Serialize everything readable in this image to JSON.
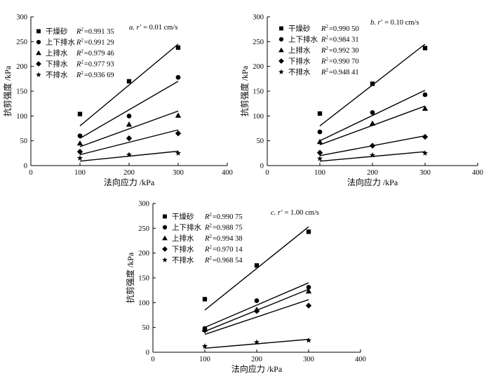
{
  "chart_data": [
    {
      "id": "a",
      "type": "scatter",
      "title_prefix": "a. r′ =",
      "title_value": "0.01 cm/s",
      "xlabel": "法向应力 /kPa",
      "ylabel": "抗剪强度 /kPa",
      "xlim": [
        0,
        400
      ],
      "ylim": [
        0,
        300
      ],
      "xticks": [
        "0",
        "100",
        "200",
        "300",
        "400"
      ],
      "yticks": [
        "0",
        "50",
        "100",
        "150",
        "200",
        "250",
        "300"
      ],
      "x": [
        100,
        200,
        300
      ],
      "series": [
        {
          "name": "干燥砂",
          "marker": "square",
          "r2": "=0.991 35",
          "values": [
            104,
            170,
            238
          ],
          "fit": [
            80,
            245
          ]
        },
        {
          "name": "上下排水",
          "marker": "circle",
          "r2": "=0.991 29",
          "values": [
            60,
            100,
            178
          ],
          "fit": [
            55,
            170
          ]
        },
        {
          "name": "上排水",
          "marker": "triangle",
          "r2": "=0.979 46",
          "values": [
            45,
            83,
            101
          ],
          "fit": [
            38,
            110
          ]
        },
        {
          "name": "下排水",
          "marker": "diamond",
          "r2": "=0.977 93",
          "values": [
            28,
            55,
            65
          ],
          "fit": [
            22,
            72
          ]
        },
        {
          "name": "不排水",
          "marker": "star",
          "r2": "=0.936 69",
          "values": [
            15,
            22,
            25
          ],
          "fit": [
            9,
            29
          ]
        }
      ]
    },
    {
      "id": "b",
      "type": "scatter",
      "title_prefix": "b. r′ =",
      "title_value": "0.10 cm/s",
      "xlabel": "法向应力 /kPa",
      "ylabel": "抗剪强度 /kPa",
      "xlim": [
        0,
        400
      ],
      "ylim": [
        0,
        300
      ],
      "xticks": [
        "0",
        "100",
        "200",
        "300",
        "400"
      ],
      "yticks": [
        "0",
        "50",
        "100",
        "150",
        "200",
        "250",
        "300"
      ],
      "x": [
        100,
        200,
        300
      ],
      "series": [
        {
          "name": "干燥砂",
          "marker": "square",
          "r2": "=0.990 50",
          "values": [
            105,
            165,
            237
          ],
          "fit": [
            80,
            245
          ]
        },
        {
          "name": "上下排水",
          "marker": "circle",
          "r2": "=0.984 31",
          "values": [
            68,
            107,
            143
          ],
          "fit": [
            50,
            152
          ]
        },
        {
          "name": "上排水",
          "marker": "triangle",
          "r2": "=0.992 30",
          "values": [
            48,
            85,
            115
          ],
          "fit": [
            42,
            120
          ]
        },
        {
          "name": "下排水",
          "marker": "diamond",
          "r2": "=0.990 70",
          "values": [
            26,
            40,
            58
          ],
          "fit": [
            20,
            60
          ]
        },
        {
          "name": "不排水",
          "marker": "star",
          "r2": "=0.948 41",
          "values": [
            14,
            21,
            25
          ],
          "fit": [
            9,
            28
          ]
        }
      ]
    },
    {
      "id": "c",
      "type": "scatter",
      "title_prefix": "c. r′ =",
      "title_value": "1.00 cm/s",
      "xlabel": "法向应力 /kPa",
      "ylabel": "抗剪强度 /kPa",
      "xlim": [
        0,
        400
      ],
      "ylim": [
        0,
        300
      ],
      "xticks": [
        "0",
        "100",
        "200",
        "300",
        "400"
      ],
      "yticks": [
        "0",
        "50",
        "100",
        "150",
        "200",
        "250",
        "300"
      ],
      "x": [
        100,
        200,
        300
      ],
      "series": [
        {
          "name": "干燥砂",
          "marker": "square",
          "r2": "=0.990 75",
          "values": [
            107,
            175,
            243
          ],
          "fit": [
            85,
            253
          ]
        },
        {
          "name": "上下排水",
          "marker": "circle",
          "r2": "=0.988 75",
          "values": [
            48,
            104,
            131
          ],
          "fit": [
            50,
            140
          ]
        },
        {
          "name": "上排水",
          "marker": "triangle",
          "r2": "=0.994 38",
          "values": [
            46,
            86,
            123
          ],
          "fit": [
            42,
            127
          ]
        },
        {
          "name": "下排水",
          "marker": "diamond",
          "r2": "=0.970 14",
          "values": [
            44,
            83,
            94
          ],
          "fit": [
            36,
            106
          ]
        },
        {
          "name": "不排水",
          "marker": "star",
          "r2": "=0.968 54",
          "values": [
            12,
            20,
            24
          ],
          "fit": [
            8,
            26
          ]
        }
      ]
    }
  ]
}
